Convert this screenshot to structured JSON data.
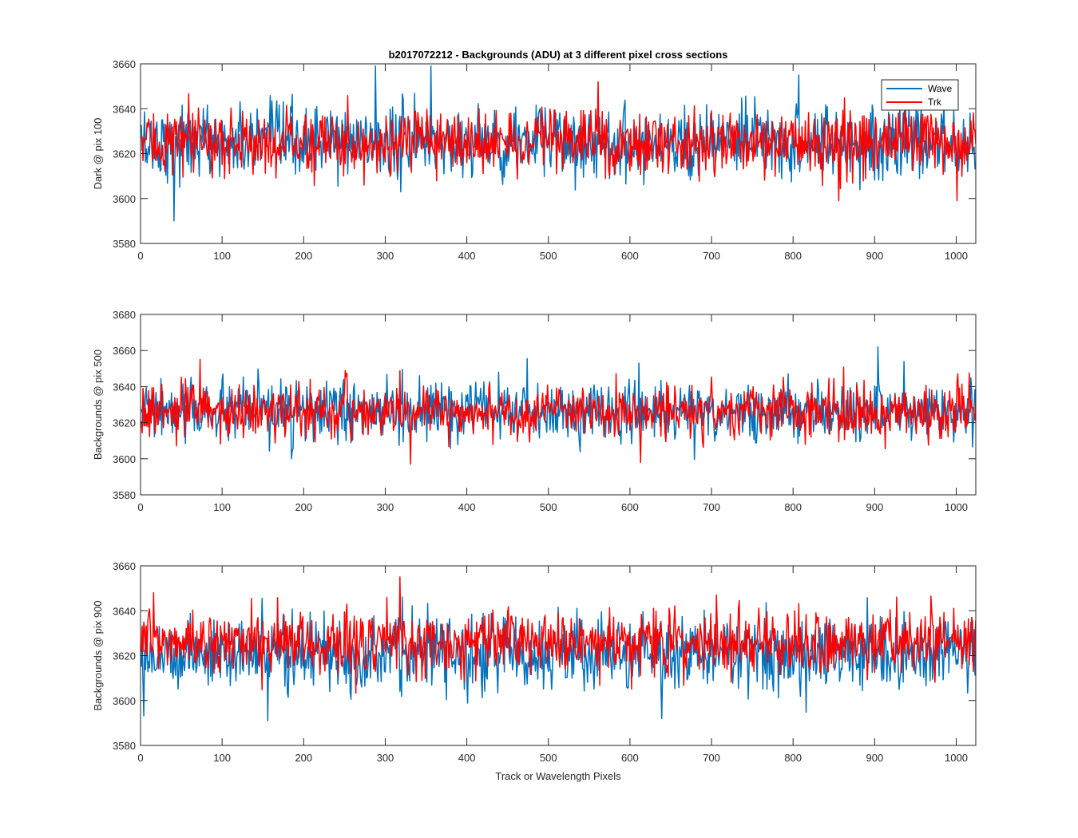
{
  "figure": {
    "title": "b2017072212 - Backgrounds (ADU) at 3 different pixel cross sections",
    "xlabel": "Track or Wavelength Pixels"
  },
  "legend": {
    "items": [
      {
        "label": "Wave",
        "color": "#0072BD"
      },
      {
        "label": "Trk",
        "color": "#FF0000"
      }
    ]
  },
  "chart_data": [
    {
      "type": "line",
      "title": "b2017072212 - Backgrounds (ADU) at 3 different pixel cross sections",
      "xlabel": "",
      "ylabel": "Dark @ pix 100",
      "xlim": [
        0,
        1024
      ],
      "ylim": [
        3580,
        3660
      ],
      "xticks": [
        0,
        100,
        200,
        300,
        400,
        500,
        600,
        700,
        800,
        900,
        1000
      ],
      "yticks": [
        3580,
        3600,
        3620,
        3640,
        3660
      ],
      "series": [
        {
          "name": "Wave",
          "color": "#0072BD",
          "points": 1024,
          "mean": 3625,
          "noise_sd": 8,
          "outliers": [
            [
              40,
              3590
            ],
            [
              287,
              3659
            ],
            [
              355,
              3659
            ],
            [
              806,
              3655
            ]
          ]
        },
        {
          "name": "Trk",
          "color": "#FF0000",
          "points": 1024,
          "mean": 3625,
          "noise_sd": 7,
          "outliers": [
            [
              560,
              3652
            ],
            [
              855,
              3599
            ],
            [
              1000,
              3599
            ]
          ]
        }
      ]
    },
    {
      "type": "line",
      "xlabel": "",
      "ylabel": "Backgrounds @ pix 500",
      "xlim": [
        0,
        1024
      ],
      "ylim": [
        3580,
        3680
      ],
      "xticks": [
        0,
        100,
        200,
        300,
        400,
        500,
        600,
        700,
        800,
        900,
        1000
      ],
      "yticks": [
        3580,
        3600,
        3620,
        3640,
        3660,
        3680
      ],
      "series": [
        {
          "name": "Wave",
          "color": "#0072BD",
          "points": 1024,
          "mean": 3626,
          "noise_sd": 8,
          "outliers": [
            [
              903,
              3662
            ],
            [
              610,
              3653
            ]
          ]
        },
        {
          "name": "Trk",
          "color": "#FF0000",
          "points": 1024,
          "mean": 3626,
          "noise_sd": 7,
          "outliers": [
            [
              72,
              3655
            ],
            [
              330,
              3597
            ],
            [
              612,
              3598
            ]
          ]
        }
      ]
    },
    {
      "type": "line",
      "xlabel": "Track or Wavelength Pixels",
      "ylabel": "Backgrounds @ pix 900",
      "xlim": [
        0,
        1024
      ],
      "ylim": [
        3580,
        3660
      ],
      "xticks": [
        0,
        100,
        200,
        300,
        400,
        500,
        600,
        700,
        800,
        900,
        1000
      ],
      "yticks": [
        3580,
        3600,
        3620,
        3640,
        3660
      ],
      "series": [
        {
          "name": "Wave",
          "color": "#0072BD",
          "points": 1024,
          "mean": 3621,
          "noise_sd": 8,
          "outliers": [
            [
              155,
              3591
            ],
            [
              638,
              3592
            ]
          ]
        },
        {
          "name": "Trk",
          "color": "#FF0000",
          "points": 1024,
          "mean": 3626,
          "noise_sd": 7,
          "outliers": [
            [
              317,
              3655
            ],
            [
              15,
              3648
            ],
            [
              705,
              3647
            ]
          ]
        }
      ]
    }
  ]
}
